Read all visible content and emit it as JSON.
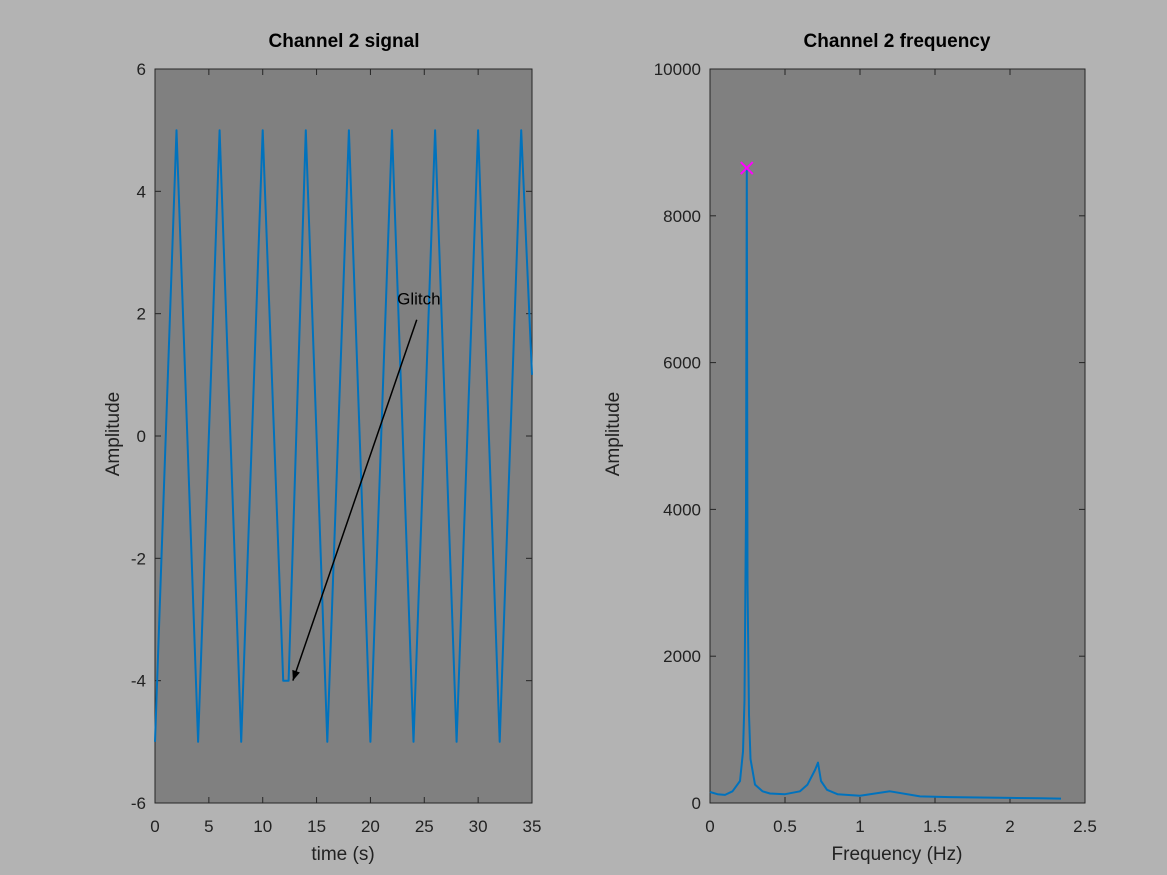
{
  "chart_data": [
    {
      "type": "line",
      "title": "Channel 2 signal",
      "xlabel": "time (s)",
      "ylabel": "Amplitude",
      "xlim": [
        0,
        35
      ],
      "ylim": [
        -6,
        6
      ],
      "xticks": [
        "0",
        "5",
        "10",
        "15",
        "20",
        "25",
        "30",
        "35"
      ],
      "yticks": [
        "-6",
        "-4",
        "-2",
        "0",
        "2",
        "4",
        "6"
      ],
      "grid": false,
      "colors": {
        "axes_bg": "#808080",
        "line": "#0072bd"
      },
      "series": [
        {
          "x": [
            0,
            2,
            4,
            6,
            8,
            10,
            11.9,
            12.4,
            14,
            16,
            18,
            20,
            22,
            24,
            26,
            28,
            30,
            32,
            34,
            35
          ],
          "y": [
            -5,
            5,
            -5,
            5,
            -5,
            5,
            -4,
            -4,
            5,
            -5,
            5,
            -5,
            5,
            -5,
            5,
            -5,
            5,
            -5,
            5,
            1
          ]
        }
      ],
      "annotations": [
        {
          "text": "Glitch",
          "text_at": [
            24.5,
            2.15
          ],
          "arrow_from": [
            24.3,
            1.9
          ],
          "arrow_to": [
            12.8,
            -4.0
          ]
        }
      ]
    },
    {
      "type": "line",
      "title": "Channel 2 frequency",
      "xlabel": "Frequency (Hz)",
      "ylabel": "Amplitude",
      "xlim": [
        0,
        2.5
      ],
      "ylim": [
        0,
        10000
      ],
      "xticks": [
        "0",
        "0.5",
        "1",
        "1.5",
        "2",
        "2.5"
      ],
      "yticks": [
        "0",
        "2000",
        "4000",
        "6000",
        "8000",
        "10000"
      ],
      "grid": false,
      "colors": {
        "axes_bg": "#808080",
        "line": "#0072bd",
        "peak_marker": "#ff00ff"
      },
      "series": [
        {
          "x": [
            0,
            0.05,
            0.1,
            0.15,
            0.2,
            0.22,
            0.23,
            0.24,
            0.245,
            0.25,
            0.26,
            0.27,
            0.3,
            0.35,
            0.4,
            0.5,
            0.6,
            0.65,
            0.7,
            0.72,
            0.74,
            0.78,
            0.85,
            1.0,
            1.2,
            1.4,
            1.6,
            1.8,
            2.0,
            2.2,
            2.34
          ],
          "y": [
            150,
            120,
            110,
            160,
            300,
            700,
            1400,
            4000,
            8650,
            3000,
            1200,
            600,
            250,
            160,
            130,
            120,
            160,
            250,
            450,
            550,
            300,
            180,
            120,
            100,
            160,
            90,
            80,
            75,
            70,
            65,
            60
          ]
        }
      ],
      "peak": {
        "x": 0.245,
        "y": 8650
      }
    }
  ]
}
